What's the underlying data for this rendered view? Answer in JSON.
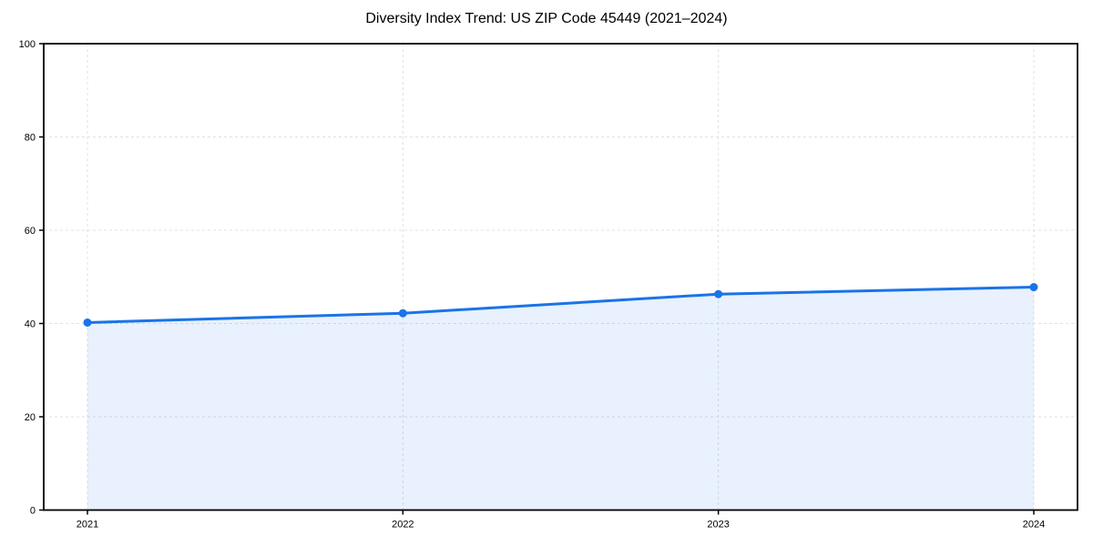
{
  "chart_data": {
    "type": "area",
    "title": "Diversity Index Trend: US ZIP Code 45449 (2021–2024)",
    "categories": [
      "2021",
      "2022",
      "2023",
      "2024"
    ],
    "values": [
      40.2,
      42.2,
      46.3,
      47.8
    ],
    "xlabel": "",
    "ylabel": "",
    "ylim": [
      0,
      100
    ],
    "yticks": [
      0,
      20,
      40,
      60,
      80,
      100
    ],
    "grid": true,
    "grid_style": "dashed",
    "legend": "none",
    "colors": {
      "line": "#1a73e8",
      "marker": "#1a73e8",
      "fill": "#1a73e8",
      "fill_opacity": 0.1,
      "grid": "#e0e0e0",
      "axis": "#000000",
      "tick_text": "#000000",
      "background": "#ffffff"
    }
  }
}
